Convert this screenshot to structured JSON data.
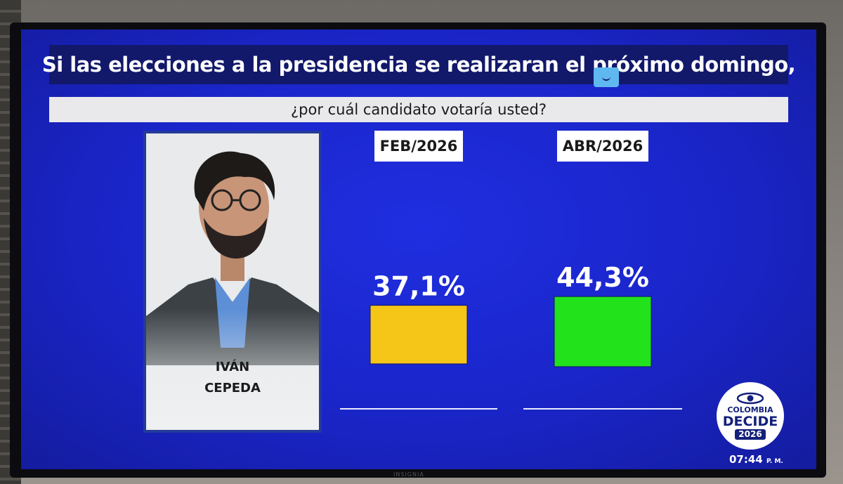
{
  "headline": "Si las elecciones a la presidencia se realizaran el próximo domingo,",
  "question": "¿por cuál candidato votaría usted?",
  "candidate": {
    "name_line1": "IVÁN",
    "name_line2": "CEPEDA"
  },
  "chart_data": {
    "type": "bar",
    "categories": [
      "FEB/2026",
      "ABR/2026"
    ],
    "values": [
      37.1,
      44.3
    ],
    "value_labels": [
      "37,1%",
      "44,3%"
    ],
    "colors": [
      "#f5c518",
      "#22e21c"
    ],
    "title": "",
    "xlabel": "",
    "ylabel": "",
    "ylim": [
      0,
      100
    ],
    "grid": false,
    "legend": "none"
  },
  "logo": {
    "line1": "COLOMBIA",
    "line2": "DECIDE",
    "year": "2026",
    "icon": "eye-icon"
  },
  "clock": {
    "time": "07:44",
    "ampm": "P. M."
  },
  "tv_brand": "INSIGNIA",
  "colors": {
    "screen_bg": "#1a25c8",
    "headline_bg": "#12186a",
    "subhead_bg": "#e9e9eb"
  }
}
